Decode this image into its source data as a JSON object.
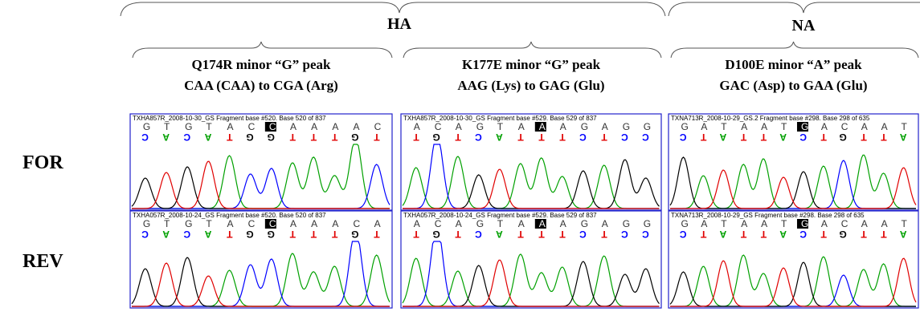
{
  "groups": [
    {
      "label": "HA"
    },
    {
      "label": "NA"
    }
  ],
  "columns": [
    {
      "line1": "Q174R  minor “G” peak",
      "line2": "CAA (CAA) to CGA (Arg)"
    },
    {
      "line1": "K177E  minor “G” peak",
      "line2": "AAG (Lys) to GAG (Glu)"
    },
    {
      "line1": "D100E  minor “A” peak",
      "line2": "GAC (Asp) to GAA (Glu)"
    }
  ],
  "rows": [
    {
      "label": "FOR"
    },
    {
      "label": "REV"
    }
  ],
  "panels": [
    {
      "header": "TXHA857R_2008-10-30_GS Fragment base #520. Base 520 of 837",
      "sequence": [
        "G",
        "T",
        "G",
        "T",
        "A",
        "C",
        "C",
        "A",
        "A",
        "A",
        "A",
        "C"
      ],
      "lane": [
        "C",
        "A",
        "C",
        "A",
        "T",
        "G",
        "G",
        "T",
        "T",
        "T",
        "G",
        "T"
      ],
      "highlight": 6
    },
    {
      "header": "TXHA857R_2008-10-30_GS Fragment base #529. Base 529 of 837",
      "sequence": [
        "A",
        "C",
        "A",
        "G",
        "T",
        "A",
        "A",
        "A",
        "G",
        "A",
        "G",
        "G"
      ],
      "lane": [
        "T",
        "G",
        "T",
        "C",
        "A",
        "T",
        "T",
        "T",
        "C",
        "T",
        "C",
        "C"
      ],
      "highlight": 6
    },
    {
      "header": "TXNA713R_2008-10-29_GS.2 Fragment base #298. Base 298 of 635",
      "sequence": [
        "G",
        "A",
        "T",
        "A",
        "A",
        "T",
        "G",
        "A",
        "C",
        "A",
        "A",
        "T"
      ],
      "lane": [
        "C",
        "T",
        "A",
        "T",
        "T",
        "A",
        "C",
        "T",
        "G",
        "T",
        "T",
        "A"
      ],
      "highlight": 6
    },
    {
      "header": "TXHA057R_2008-10-24_GS Fragment base #520. Base 520 of 837",
      "sequence": [
        "G",
        "T",
        "G",
        "T",
        "A",
        "C",
        "C",
        "A",
        "A",
        "A",
        "C",
        "A"
      ],
      "lane": [
        "C",
        "A",
        "C",
        "A",
        "T",
        "G",
        "G",
        "T",
        "T",
        "T",
        "G",
        "T"
      ],
      "highlight": 6
    },
    {
      "header": "TXHA057R_2008-10-24_GS Fragment base #529. Base 529 of 837",
      "sequence": [
        "A",
        "C",
        "A",
        "G",
        "T",
        "A",
        "A",
        "A",
        "G",
        "A",
        "G",
        "G"
      ],
      "lane": [
        "T",
        "G",
        "T",
        "C",
        "A",
        "T",
        "T",
        "T",
        "C",
        "T",
        "C",
        "C"
      ],
      "highlight": 6
    },
    {
      "header": "TXNA713R_2008-10-29_GS Fragment base #298. Base 298 of 635",
      "sequence": [
        "G",
        "A",
        "T",
        "A",
        "A",
        "T",
        "G",
        "A",
        "C",
        "A",
        "A",
        "T"
      ],
      "lane": [
        "C",
        "T",
        "A",
        "T",
        "T",
        "A",
        "C",
        "T",
        "G",
        "T",
        "T",
        "A"
      ],
      "highlight": 6
    }
  ]
}
